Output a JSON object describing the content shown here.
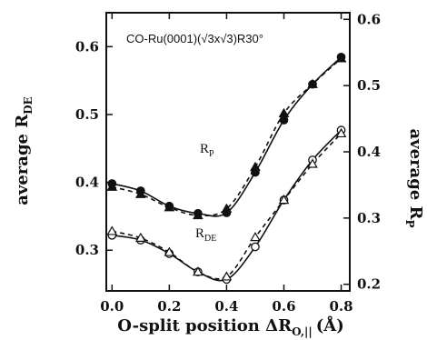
{
  "chart_data": {
    "type": "scatter",
    "title": "CO-Ru(0001)(√3x√3)R30°",
    "xlabel": {
      "main": "O-split position ΔR",
      "sub": "O,||",
      "unit": "(Å)"
    },
    "ylabel_left": {
      "main": "average R",
      "sub": "DE"
    },
    "ylabel_right": {
      "main": "average R",
      "sub": "P"
    },
    "xlim": [
      -0.02,
      0.83
    ],
    "ylim_left": [
      0.24,
      0.65
    ],
    "ylim_right": [
      0.19,
      0.61
    ],
    "x_ticks": [
      "0.0",
      "0.2",
      "0.4",
      "0.6",
      "0.8"
    ],
    "y_left_ticks": [
      "0.3",
      "0.4",
      "0.5",
      "0.6"
    ],
    "y_right_ticks": [
      "0.2",
      "0.3",
      "0.4",
      "0.5",
      "0.6"
    ],
    "grid": false,
    "annotations": [
      {
        "main": "R",
        "sub": "P"
      },
      {
        "main": "R",
        "sub": "DE"
      }
    ],
    "series": [
      {
        "axis": "right",
        "marker": "filled-circle",
        "line": "solid",
        "x": [
          0.0,
          0.1,
          0.2,
          0.3,
          0.4,
          0.5,
          0.6,
          0.7,
          0.8
        ],
        "y": [
          0.352,
          0.341,
          0.318,
          0.307,
          0.308,
          0.369,
          0.448,
          0.502,
          0.543
        ]
      },
      {
        "axis": "right",
        "marker": "filled-triangle",
        "line": "dashed",
        "x": [
          0.0,
          0.1,
          0.2,
          0.3,
          0.4,
          0.5,
          0.6,
          0.7,
          0.8
        ],
        "y": [
          0.347,
          0.336,
          0.316,
          0.304,
          0.314,
          0.377,
          0.458,
          0.502,
          0.541
        ]
      },
      {
        "axis": "left",
        "marker": "open-circle",
        "line": "solid",
        "x": [
          0.0,
          0.1,
          0.2,
          0.3,
          0.4,
          0.5,
          0.6,
          0.7,
          0.8
        ],
        "y": [
          0.322,
          0.315,
          0.295,
          0.268,
          0.257,
          0.305,
          0.374,
          0.433,
          0.477
        ]
      },
      {
        "axis": "left",
        "marker": "open-triangle",
        "line": "dashed",
        "x": [
          0.0,
          0.1,
          0.2,
          0.3,
          0.4,
          0.5,
          0.6,
          0.7,
          0.8
        ],
        "y": [
          0.328,
          0.318,
          0.297,
          0.268,
          0.261,
          0.319,
          0.374,
          0.427,
          0.472
        ]
      }
    ]
  }
}
